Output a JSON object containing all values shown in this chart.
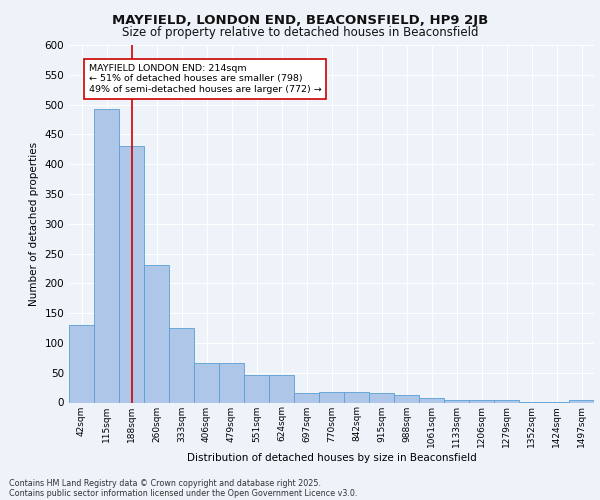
{
  "title": "MAYFIELD, LONDON END, BEACONSFIELD, HP9 2JB",
  "subtitle": "Size of property relative to detached houses in Beaconsfield",
  "xlabel": "Distribution of detached houses by size in Beaconsfield",
  "ylabel": "Number of detached properties",
  "bar_labels": [
    "42sqm",
    "115sqm",
    "188sqm",
    "260sqm",
    "333sqm",
    "406sqm",
    "479sqm",
    "551sqm",
    "624sqm",
    "697sqm",
    "770sqm",
    "842sqm",
    "915sqm",
    "988sqm",
    "1061sqm",
    "1133sqm",
    "1206sqm",
    "1279sqm",
    "1352sqm",
    "1424sqm",
    "1497sqm"
  ],
  "bar_values": [
    130,
    492,
    430,
    230,
    125,
    67,
    67,
    46,
    46,
    16,
    17,
    17,
    16,
    13,
    8,
    4,
    4,
    4,
    1,
    1,
    5
  ],
  "bar_color": "#aec6e8",
  "bar_edge_color": "#5a9fd4",
  "vline_x": 2,
  "vline_color": "#cc0000",
  "annotation_text": "MAYFIELD LONDON END: 214sqm\n← 51% of detached houses are smaller (798)\n49% of semi-detached houses are larger (772) →",
  "annotation_box_color": "#ffffff",
  "annotation_box_edge": "#cc0000",
  "ylim": [
    0,
    600
  ],
  "yticks": [
    0,
    50,
    100,
    150,
    200,
    250,
    300,
    350,
    400,
    450,
    500,
    550,
    600
  ],
  "background_color": "#eef2f9",
  "grid_color": "#ffffff",
  "footer": "Contains HM Land Registry data © Crown copyright and database right 2025.\nContains public sector information licensed under the Open Government Licence v3.0.",
  "fig_bg": "#eef2f9"
}
